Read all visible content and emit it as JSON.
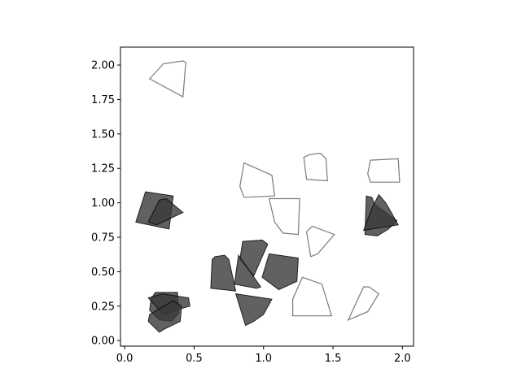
{
  "chart_data": {
    "type": "scatter",
    "title": "",
    "xlabel": "",
    "ylabel": "",
    "xlim": [
      -0.03,
      2.08
    ],
    "ylim": [
      -0.04,
      2.13
    ],
    "grid": false,
    "x_ticks": [
      0.0,
      0.5,
      1.0,
      1.5,
      2.0
    ],
    "x_tick_labels": [
      "0.0",
      "0.5",
      "1.0",
      "1.5",
      "2.0"
    ],
    "y_ticks": [
      0.0,
      0.25,
      0.5,
      0.75,
      1.0,
      1.25,
      1.5,
      1.75,
      2.0
    ],
    "y_tick_labels": [
      "0.00",
      "0.25",
      "0.50",
      "0.75",
      "1.00",
      "1.25",
      "1.50",
      "1.75",
      "2.00"
    ],
    "colors": {
      "filled": "#3a3a3a",
      "outline": "#7a7a7a",
      "axis": "#000000"
    },
    "series": [
      {
        "style": "filled",
        "polygons": [
          [
            [
              0.08,
              0.86
            ],
            [
              0.15,
              1.08
            ],
            [
              0.35,
              1.05
            ],
            [
              0.32,
              0.81
            ]
          ],
          [
            [
              0.17,
              0.86
            ],
            [
              0.25,
              1.02
            ],
            [
              0.3,
              1.03
            ],
            [
              0.42,
              0.93
            ],
            [
              0.23,
              0.84
            ]
          ],
          [
            [
              0.19,
              0.3
            ],
            [
              0.22,
              0.35
            ],
            [
              0.38,
              0.35
            ],
            [
              0.39,
              0.2
            ],
            [
              0.34,
              0.14
            ],
            [
              0.25,
              0.15
            ],
            [
              0.18,
              0.22
            ]
          ],
          [
            [
              0.17,
              0.31
            ],
            [
              0.27,
              0.34
            ],
            [
              0.46,
              0.31
            ],
            [
              0.47,
              0.25
            ],
            [
              0.33,
              0.21
            ],
            [
              0.28,
              0.19
            ]
          ],
          [
            [
              0.18,
              0.19
            ],
            [
              0.17,
              0.14
            ],
            [
              0.25,
              0.06
            ],
            [
              0.28,
              0.08
            ],
            [
              0.4,
              0.14
            ],
            [
              0.41,
              0.25
            ],
            [
              0.35,
              0.29
            ]
          ],
          [
            [
              0.63,
              0.59
            ],
            [
              0.65,
              0.61
            ],
            [
              0.72,
              0.62
            ],
            [
              0.75,
              0.59
            ],
            [
              0.8,
              0.36
            ],
            [
              0.62,
              0.38
            ]
          ],
          [
            [
              0.85,
              0.72
            ],
            [
              0.99,
              0.73
            ],
            [
              1.03,
              0.7
            ],
            [
              0.93,
              0.47
            ],
            [
              0.83,
              0.59
            ]
          ],
          [
            [
              1.04,
              0.63
            ],
            [
              1.25,
              0.6
            ],
            [
              1.24,
              0.43
            ],
            [
              1.11,
              0.37
            ],
            [
              0.99,
              0.46
            ]
          ],
          [
            [
              0.79,
              0.41
            ],
            [
              0.82,
              0.62
            ],
            [
              0.98,
              0.39
            ],
            [
              0.95,
              0.38
            ]
          ],
          [
            [
              0.8,
              0.34
            ],
            [
              0.87,
              0.11
            ],
            [
              0.93,
              0.14
            ],
            [
              1.0,
              0.19
            ],
            [
              1.06,
              0.3
            ]
          ],
          [
            [
              1.73,
              0.77
            ],
            [
              1.82,
              0.76
            ],
            [
              1.9,
              0.81
            ],
            [
              1.96,
              0.87
            ],
            [
              1.8,
              0.99
            ],
            [
              1.78,
              1.04
            ],
            [
              1.74,
              1.05
            ]
          ],
          [
            [
              1.72,
              0.8
            ],
            [
              1.78,
              0.96
            ],
            [
              1.83,
              1.06
            ],
            [
              1.88,
              1.0
            ],
            [
              1.97,
              0.84
            ]
          ]
        ]
      },
      {
        "style": "outline",
        "polygons": [
          [
            [
              0.18,
              1.9
            ],
            [
              0.28,
              2.01
            ],
            [
              0.42,
              2.03
            ],
            [
              0.44,
              2.02
            ],
            [
              0.42,
              1.77
            ]
          ],
          [
            [
              0.83,
              1.12
            ],
            [
              0.86,
              1.29
            ],
            [
              1.06,
              1.2
            ],
            [
              1.08,
              1.05
            ],
            [
              0.86,
              1.04
            ]
          ],
          [
            [
              1.04,
              1.03
            ],
            [
              1.26,
              1.03
            ],
            [
              1.25,
              0.77
            ],
            [
              1.14,
              0.78
            ],
            [
              1.08,
              0.86
            ]
          ],
          [
            [
              1.29,
              1.33
            ],
            [
              1.33,
              1.35
            ],
            [
              1.41,
              1.36
            ],
            [
              1.45,
              1.32
            ],
            [
              1.46,
              1.16
            ],
            [
              1.31,
              1.17
            ]
          ],
          [
            [
              1.77,
              1.31
            ],
            [
              1.97,
              1.32
            ],
            [
              1.98,
              1.15
            ],
            [
              1.77,
              1.15
            ],
            [
              1.75,
              1.21
            ]
          ],
          [
            [
              1.31,
              0.79
            ],
            [
              1.35,
              0.83
            ],
            [
              1.51,
              0.77
            ],
            [
              1.39,
              0.63
            ],
            [
              1.34,
              0.61
            ]
          ],
          [
            [
              1.21,
              0.18
            ],
            [
              1.21,
              0.3
            ],
            [
              1.28,
              0.46
            ],
            [
              1.42,
              0.41
            ],
            [
              1.49,
              0.18
            ]
          ],
          [
            [
              1.61,
              0.15
            ],
            [
              1.72,
              0.39
            ],
            [
              1.76,
              0.39
            ],
            [
              1.83,
              0.34
            ],
            [
              1.75,
              0.21
            ]
          ]
        ]
      }
    ]
  }
}
